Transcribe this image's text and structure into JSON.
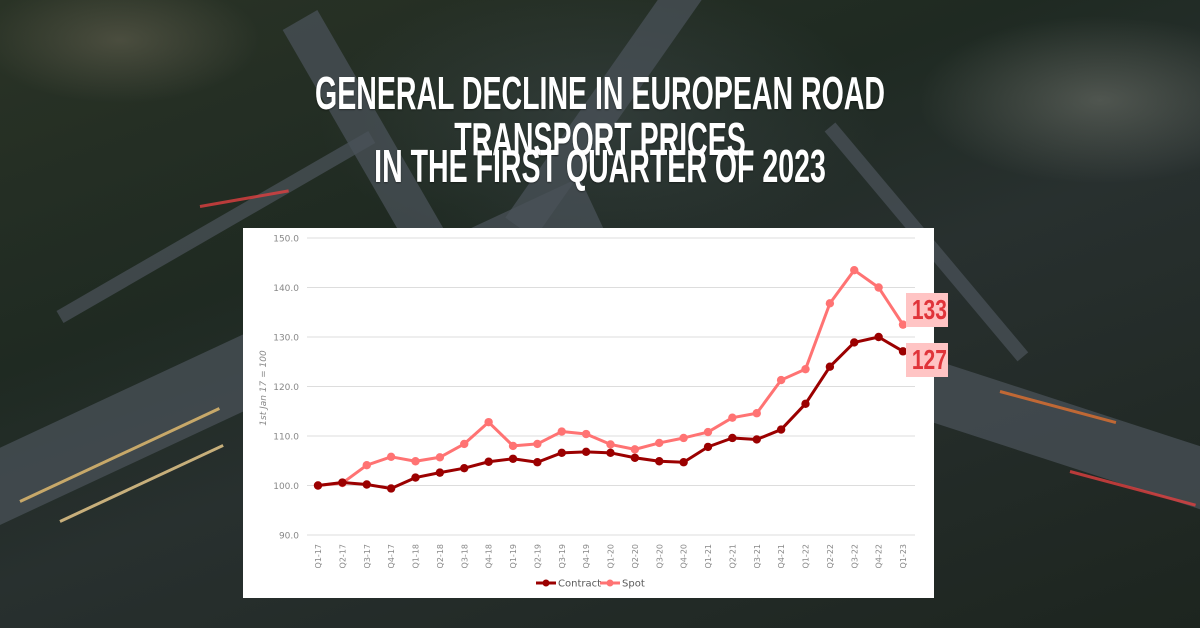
{
  "title": {
    "line1": "General decline in European road transport prices",
    "line2": "in the first quarter of 2023"
  },
  "colors": {
    "contract": "#9b0000",
    "spot": "#ff7373",
    "badge_bg": "#ffc4c4",
    "badge_text": "#e0343a",
    "grid": "#dddddd",
    "tick_text": "#888888"
  },
  "badges": {
    "spot_label": "133",
    "contract_label": "127"
  },
  "chart_data": {
    "type": "line",
    "title": "General decline in European road transport prices in the first quarter of 2023",
    "xlabel": "",
    "ylabel": "1st Jan 17 = 100",
    "ylim": [
      90,
      150
    ],
    "yticks": [
      "90.0",
      "100.0",
      "110.0",
      "120.0",
      "130.0",
      "140.0",
      "150.0"
    ],
    "grid": true,
    "legend_position": "bottom-center",
    "categories": [
      "Q1-17",
      "Q2-17",
      "Q3-17",
      "Q4-17",
      "Q1-18",
      "Q2-18",
      "Q3-18",
      "Q4-18",
      "Q1-19",
      "Q2-19",
      "Q3-19",
      "Q4-19",
      "Q1-20",
      "Q2-20",
      "Q3-20",
      "Q4-20",
      "Q1-21",
      "Q2-21",
      "Q3-21",
      "Q4-21",
      "Q1-22",
      "Q2-22",
      "Q3-22",
      "Q4-22",
      "Q1-23"
    ],
    "series": [
      {
        "name": "Contract",
        "values": [
          100.0,
          100.6,
          100.2,
          99.4,
          101.6,
          102.6,
          103.5,
          104.8,
          105.4,
          104.7,
          106.6,
          106.8,
          106.6,
          105.6,
          104.9,
          104.7,
          107.8,
          109.6,
          109.3,
          111.3,
          116.5,
          124.0,
          128.9,
          130.0,
          127.1
        ]
      },
      {
        "name": "Spot",
        "values": [
          100.0,
          100.5,
          104.1,
          105.8,
          104.9,
          105.7,
          108.4,
          112.8,
          108.0,
          108.4,
          110.9,
          110.4,
          108.3,
          107.3,
          108.6,
          109.6,
          110.8,
          113.7,
          114.6,
          121.3,
          123.5,
          136.8,
          143.5,
          140.0,
          132.5
        ]
      }
    ],
    "annotations": [
      "133",
      "127"
    ]
  }
}
